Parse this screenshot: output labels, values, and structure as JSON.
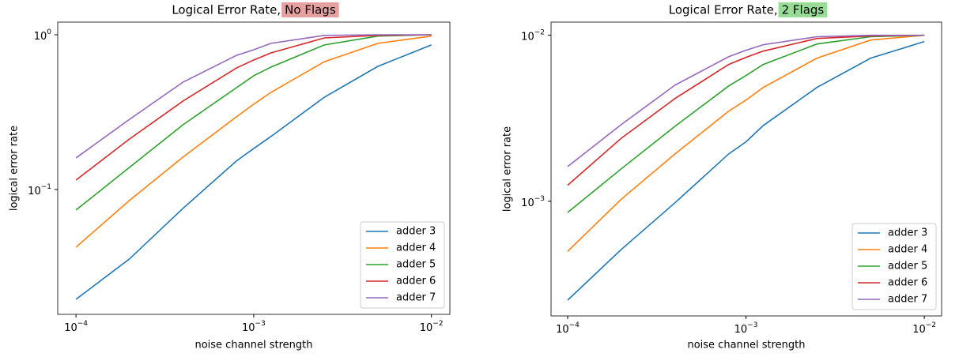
{
  "chart_data": [
    {
      "type": "line",
      "title": "Logical Error Rate,",
      "title_highlight": "No Flags",
      "highlight_color": "#e5a0a0",
      "xlabel": "noise channel strength",
      "ylabel": "logical error rate",
      "xscale": "log",
      "yscale": "log",
      "legend": "lower right",
      "x": [
        0.0001,
        0.0002,
        0.0004,
        0.0008,
        0.001,
        0.00125,
        0.0025,
        0.005,
        0.01
      ],
      "xlim": [
        7.89e-05,
        0.0127
      ],
      "ylim": [
        0.0156,
        1.207
      ],
      "xticks": [
        {
          "value": 0.0001,
          "label": "10",
          "exponent": "−4"
        },
        {
          "value": 0.001,
          "label": "10",
          "exponent": "−3"
        },
        {
          "value": 0.01,
          "label": "10",
          "exponent": "−2"
        }
      ],
      "yticks": [
        {
          "value": 0.1,
          "label": "10",
          "exponent": "−1"
        },
        {
          "value": 1,
          "label": "10",
          "exponent": "0"
        }
      ],
      "series": [
        {
          "name": "adder 3",
          "color": "#1f77b4",
          "values": [
            0.0195,
            0.0356,
            0.0755,
            0.153,
            0.184,
            0.22,
            0.395,
            0.625,
            0.86
          ]
        },
        {
          "name": "adder 4",
          "color": "#ff7f0e",
          "values": [
            0.0424,
            0.085,
            0.162,
            0.295,
            0.356,
            0.424,
            0.67,
            0.88,
            0.98
          ]
        },
        {
          "name": "adder 5",
          "color": "#2ca02c",
          "values": [
            0.0737,
            0.139,
            0.262,
            0.455,
            0.543,
            0.618,
            0.86,
            0.98,
            1.0
          ]
        },
        {
          "name": "adder 6",
          "color": "#d62728",
          "values": [
            0.115,
            0.212,
            0.373,
            0.61,
            0.687,
            0.763,
            0.954,
            0.99,
            1.0
          ]
        },
        {
          "name": "adder 7",
          "color": "#9467bd",
          "values": [
            0.16,
            0.284,
            0.494,
            0.736,
            0.8,
            0.88,
            0.99,
            1.0,
            1.0
          ]
        }
      ]
    },
    {
      "type": "line",
      "title": "Logical Error Rate,",
      "title_highlight": "2 Flags",
      "highlight_color": "#98dc98",
      "xlabel": "noise channel strength",
      "ylabel": "logical error rate",
      "xscale": "log",
      "yscale": "log",
      "legend": "lower right",
      "x": [
        0.0001,
        0.0002,
        0.0004,
        0.0008,
        0.001,
        0.00125,
        0.0025,
        0.005,
        0.01
      ],
      "xlim": [
        8.07e-05,
        0.0125
      ],
      "ylim": [
        0.000204,
        0.012
      ],
      "xticks": [
        {
          "value": 0.0001,
          "label": "10",
          "exponent": "−4"
        },
        {
          "value": 0.001,
          "label": "10",
          "exponent": "−3"
        },
        {
          "value": 0.01,
          "label": "10",
          "exponent": "−2"
        }
      ],
      "yticks": [
        {
          "value": 0.001,
          "label": "10",
          "exponent": "−3"
        },
        {
          "value": 0.01,
          "label": "10",
          "exponent": "−2"
        }
      ],
      "series": [
        {
          "name": "adder 3",
          "color": "#1f77b4",
          "values": [
            0.000254,
            0.000513,
            0.00098,
            0.00193,
            0.00228,
            0.00286,
            0.00485,
            0.00728,
            0.00916
          ]
        },
        {
          "name": "adder 4",
          "color": "#ff7f0e",
          "values": [
            0.0005,
            0.00103,
            0.00193,
            0.00349,
            0.00407,
            0.00485,
            0.00728,
            0.00936,
            0.01
          ]
        },
        {
          "name": "adder 5",
          "color": "#2ca02c",
          "values": [
            0.000857,
            0.00157,
            0.00283,
            0.00495,
            0.00572,
            0.00667,
            0.00886,
            0.0098,
            0.01
          ]
        },
        {
          "name": "adder 6",
          "color": "#d62728",
          "values": [
            0.00125,
            0.0024,
            0.00416,
            0.00667,
            0.00736,
            0.00803,
            0.00957,
            0.0099,
            0.01
          ]
        },
        {
          "name": "adder 7",
          "color": "#9467bd",
          "values": [
            0.00162,
            0.0029,
            0.00501,
            0.00743,
            0.00812,
            0.00877,
            0.0098,
            0.01,
            0.01
          ]
        }
      ]
    }
  ]
}
